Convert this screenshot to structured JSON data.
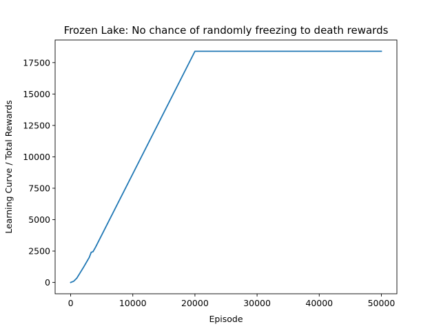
{
  "chart_data": {
    "type": "line",
    "title": "Frozen Lake: No chance of randomly freezing to death rewards",
    "xlabel": "Episode",
    "ylabel": "Learning Curve / Total Rewards",
    "xlim": [
      -2500,
      52500
    ],
    "ylim": [
      -900,
      19300
    ],
    "xticks": [
      0,
      10000,
      20000,
      30000,
      40000,
      50000
    ],
    "xtick_labels": [
      "0",
      "10000",
      "20000",
      "30000",
      "40000",
      "50000"
    ],
    "yticks": [
      0,
      2500,
      5000,
      7500,
      10000,
      12500,
      15000,
      17500
    ],
    "ytick_labels": [
      "0",
      "2500",
      "5000",
      "7500",
      "10000",
      "12500",
      "15000",
      "17500"
    ],
    "grid": false,
    "series": [
      {
        "color": "#1f77b4",
        "points": [
          [
            0,
            0
          ],
          [
            500,
            100
          ],
          [
            1000,
            350
          ],
          [
            1500,
            750
          ],
          [
            2000,
            1150
          ],
          [
            3000,
            2000
          ],
          [
            3300,
            2400
          ],
          [
            3600,
            2450
          ],
          [
            4000,
            2800
          ],
          [
            20000,
            18400
          ],
          [
            50000,
            18400
          ]
        ]
      }
    ]
  }
}
